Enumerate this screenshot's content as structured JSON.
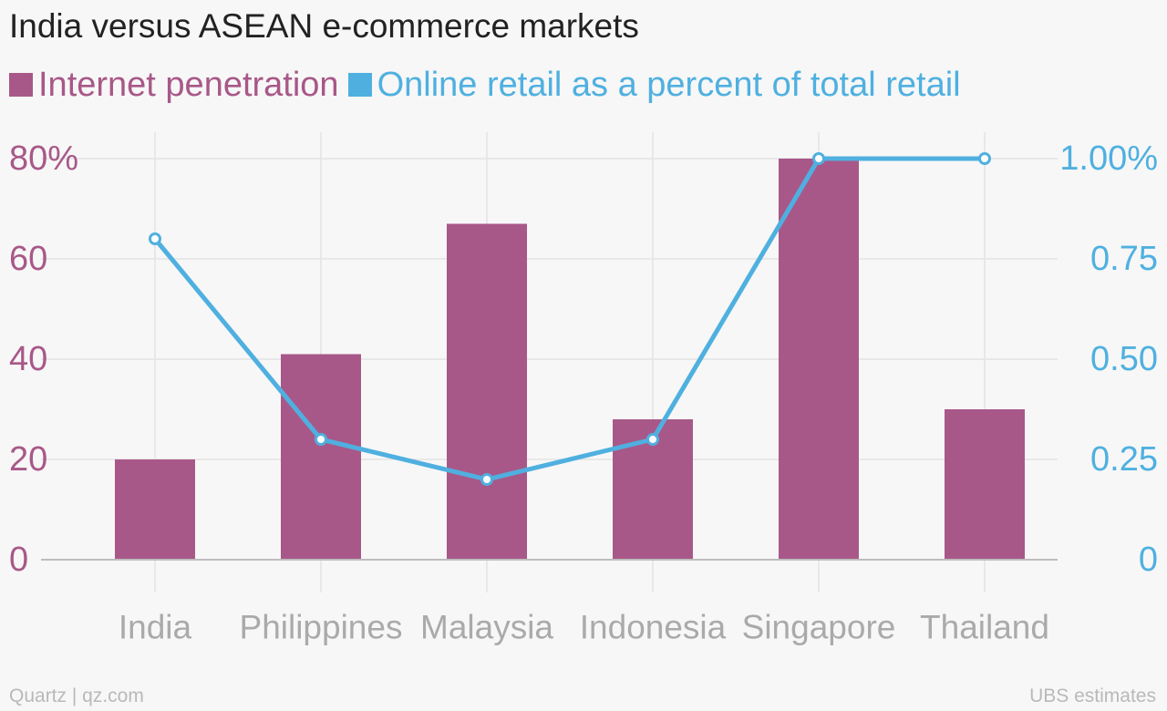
{
  "title": "India versus ASEAN e-commerce markets",
  "legend": [
    {
      "label": "Internet penetration",
      "color": "#a85888"
    },
    {
      "label": "Online retail as a percent of total retail",
      "color": "#4fb0e0"
    }
  ],
  "footer": {
    "left": "Quartz | qz.com",
    "right": "UBS estimates"
  },
  "chart_data": {
    "type": "bar",
    "title": "India versus ASEAN e-commerce markets",
    "categories": [
      "India",
      "Philippines",
      "Malaysia",
      "Indonesia",
      "Singapore",
      "Thailand"
    ],
    "series": [
      {
        "name": "Internet penetration",
        "type": "bar",
        "axis": "left",
        "color": "#a85888",
        "values": [
          20,
          41,
          67,
          28,
          80,
          30
        ]
      },
      {
        "name": "Online retail as a percent of total retail",
        "type": "line",
        "axis": "right",
        "color": "#4fb0e0",
        "values": [
          0.8,
          0.3,
          0.2,
          0.3,
          1.0,
          1.0
        ]
      }
    ],
    "y_left": {
      "min": 0,
      "max": 80,
      "ticks": [
        0,
        20,
        40,
        60,
        80
      ],
      "tick_labels": [
        "0",
        "20",
        "40",
        "60",
        "80%"
      ],
      "color": "#a85888"
    },
    "y_right": {
      "min": 0,
      "max": 1,
      "ticks": [
        0,
        0.25,
        0.5,
        0.75,
        1.0
      ],
      "tick_labels": [
        "0",
        "0.25",
        "0.50",
        "0.75",
        "1.00%"
      ],
      "color": "#4fb0e0"
    },
    "grid": true,
    "legend_position": "top-left"
  }
}
